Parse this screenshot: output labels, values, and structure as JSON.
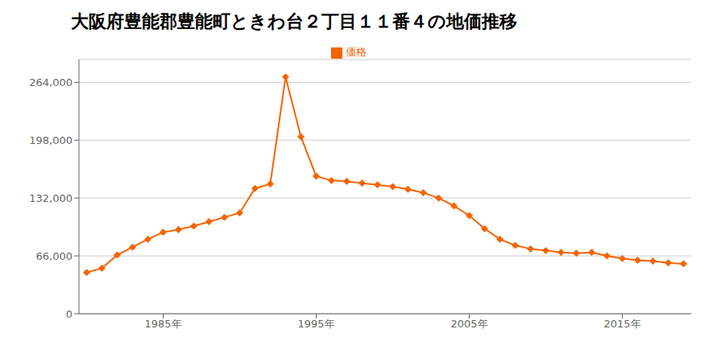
{
  "chart_data": {
    "type": "line",
    "title": "大阪府豊能郡豊能町ときわ台２丁目１１番４の地価推移",
    "x": [
      1980,
      1981,
      1982,
      1983,
      1984,
      1985,
      1986,
      1987,
      1988,
      1989,
      1990,
      1991,
      1992,
      1993,
      1994,
      1995,
      1996,
      1997,
      1998,
      1999,
      2000,
      2001,
      2002,
      2003,
      2004,
      2005,
      2006,
      2007,
      2008,
      2009,
      2010,
      2011,
      2012,
      2013,
      2014,
      2015,
      2016,
      2017,
      2018,
      2019
    ],
    "series": [
      {
        "name": "価格",
        "color": "#f56400",
        "marker": "diamond",
        "values": [
          47000,
          52000,
          67000,
          76000,
          85000,
          93000,
          96000,
          100000,
          105000,
          110000,
          115000,
          143000,
          148000,
          270000,
          202000,
          157000,
          152000,
          151000,
          149000,
          147000,
          145000,
          142000,
          138000,
          132000,
          123000,
          112000,
          97000,
          85000,
          78000,
          74000,
          72000,
          70000,
          69000,
          70000,
          66000,
          63000,
          61000,
          60000,
          58000,
          57000
        ]
      }
    ],
    "xlim": [
      1979.5,
      2019.5
    ],
    "xticks": [
      {
        "value": 1985,
        "label": "1985年"
      },
      {
        "value": 1995,
        "label": "1995年"
      },
      {
        "value": 2005,
        "label": "2005年"
      },
      {
        "value": 2015,
        "label": "2015年"
      }
    ],
    "ylim": [
      0,
      290000
    ],
    "yticks": [
      0,
      {
        "value": 66000,
        "label": "66,000"
      },
      {
        "value": 132000,
        "label": "132,000"
      },
      {
        "value": 198000,
        "label": "198,000"
      },
      {
        "value": 264000,
        "label": "264,000"
      }
    ],
    "grid": "y",
    "legend": "top"
  }
}
